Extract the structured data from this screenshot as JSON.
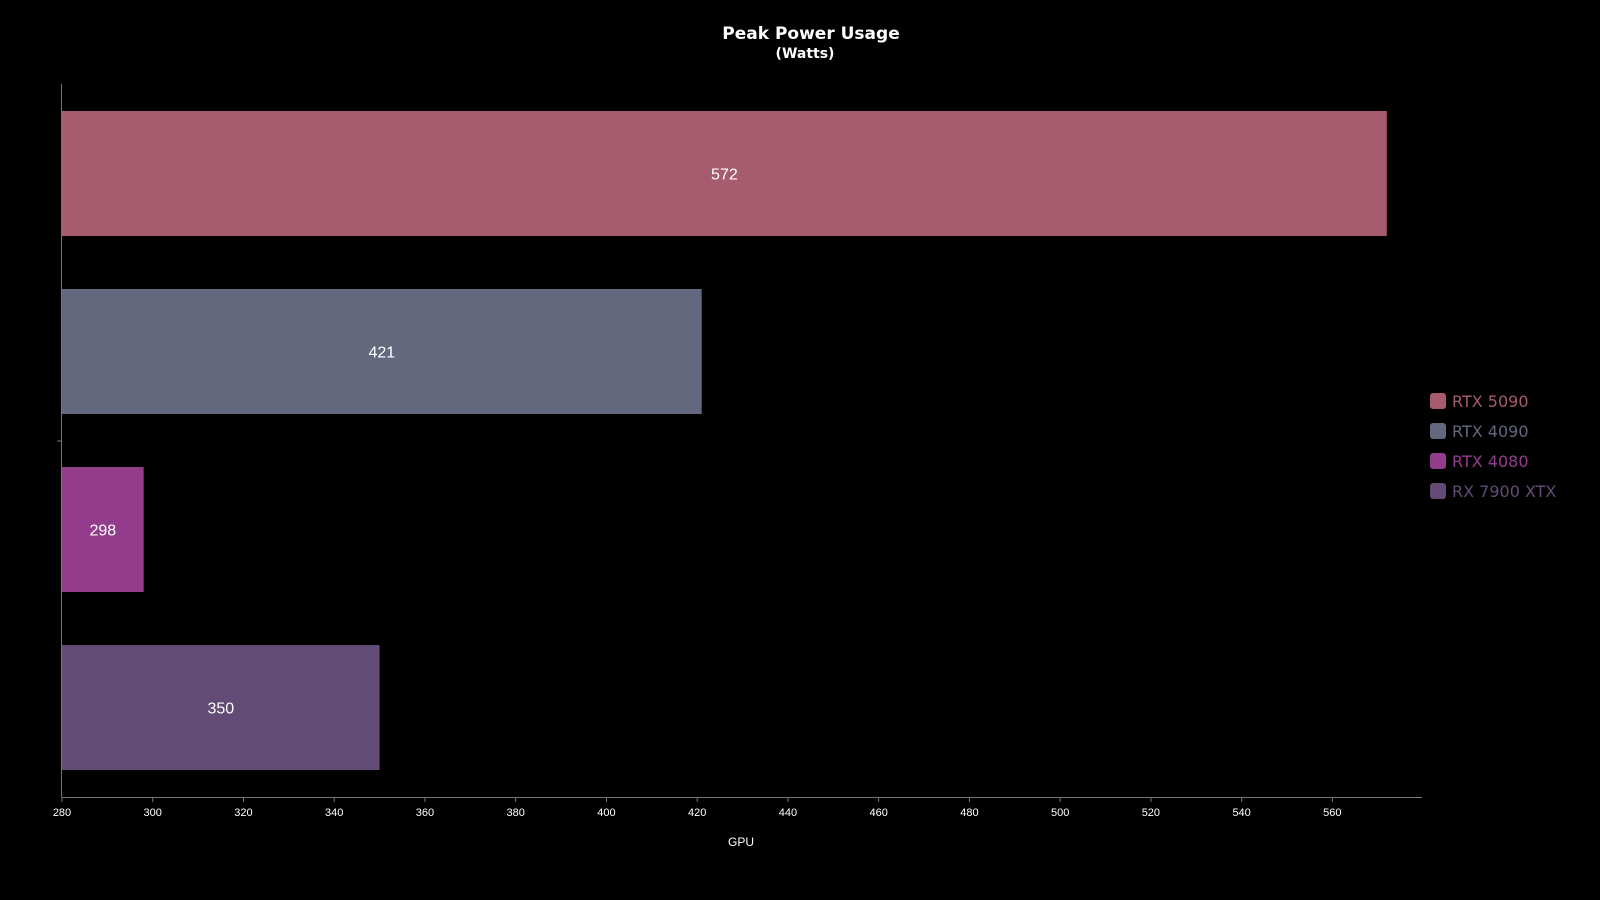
{
  "chart_data": {
    "type": "bar",
    "orientation": "horizontal",
    "title": "Peak Power Usage",
    "subtitle": "(Watts)",
    "xlabel": "GPU",
    "ylabel": "",
    "xlim": [
      280,
      580
    ],
    "xticks": [
      280,
      300,
      320,
      340,
      360,
      380,
      400,
      420,
      440,
      460,
      480,
      500,
      520,
      540,
      560
    ],
    "categories": [
      "RTX 5090",
      "RTX 4090",
      "RTX 4080",
      "RX 7900 XTX"
    ],
    "values": [
      572,
      421,
      298,
      350
    ],
    "colors": [
      "#a65c6e",
      "#63687f",
      "#933c8c",
      "#624c76"
    ],
    "legend_position": "right",
    "grid": false
  }
}
